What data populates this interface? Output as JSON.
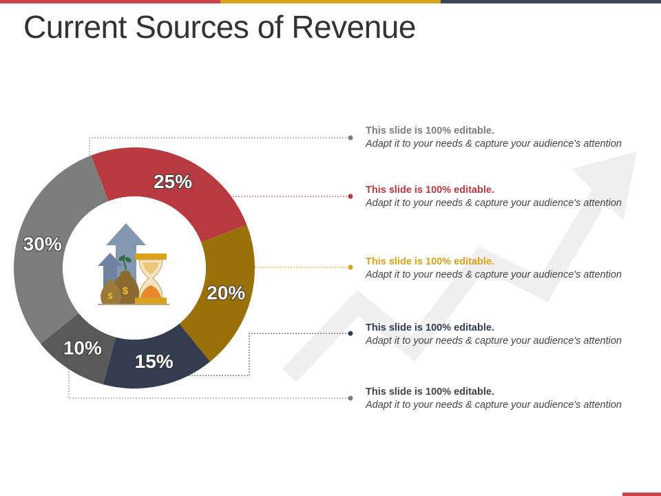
{
  "title": "Current Sources of Revenue",
  "chart_data": {
    "type": "pie",
    "style": "donut",
    "values": [
      25,
      20,
      15,
      10,
      30
    ],
    "labels": [
      "25%",
      "20%",
      "15%",
      "10%",
      "30%"
    ],
    "colors": [
      "#b8393f",
      "#9a7108",
      "#343d50",
      "#595959",
      "#7d7d7d"
    ]
  },
  "items": [
    {
      "heading": "This slide is 100% editable.",
      "text": "Adapt it to your needs & capture your audience's attention",
      "color": "#7d7d7d"
    },
    {
      "heading": "This slide is 100% editable.",
      "text": "Adapt it to your needs & capture your audience's attention",
      "color": "#b8393f"
    },
    {
      "heading": "This slide is 100% editable.",
      "text": "Adapt it to your needs & capture your audience's attention",
      "color": "#d9a21b"
    },
    {
      "heading": "This slide is 100% editable.",
      "text": "Adapt it to your needs & capture your audience's attention",
      "color": "#343d50"
    },
    {
      "heading": "This slide is 100% editable.",
      "text": "Adapt it to your needs & capture your audience's attention",
      "color": "#444444"
    }
  ],
  "center_icon": "money-growth-hourglass-icon",
  "background_icon": "trend-arrow-icon"
}
